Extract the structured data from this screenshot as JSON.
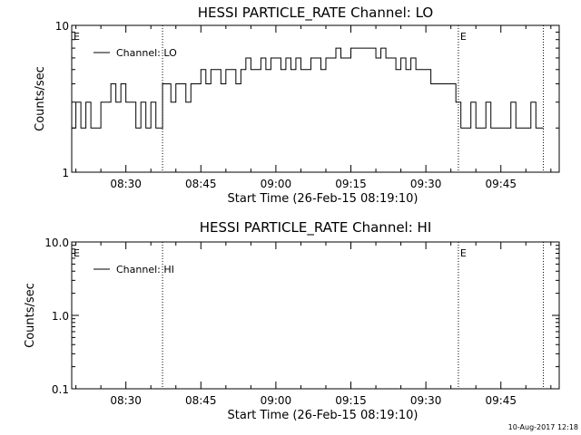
{
  "footer": {
    "timestamp": "10-Aug-2017 12:18"
  },
  "chart_data": [
    {
      "type": "line",
      "title": "HESSI PARTICLE_RATE Channel: LO",
      "xlabel": "Start Time (26-Feb-15 08:19:10)",
      "ylabel": "Counts/sec",
      "yscale": "log",
      "ylim": [
        1,
        10
      ],
      "xlim": [
        "08:19:10",
        "09:56:40"
      ],
      "y_tick_labels": [
        "1",
        "10"
      ],
      "x_tick_labels": [
        "08:30",
        "08:45",
        "09:00",
        "09:15",
        "09:30",
        "09:45"
      ],
      "event_lines": [
        "08:37:20",
        "09:36:30",
        "09:53:30"
      ],
      "event_flags": [
        {
          "time": "08:19:10",
          "label": "E"
        },
        {
          "time": "09:36:30",
          "label": "E"
        }
      ],
      "grid": false,
      "legend_position": "top-left",
      "series": [
        {
          "name": "Channel: LO",
          "step": true,
          "x": [
            "08:19:10",
            "08:20:00",
            "08:21:00",
            "08:22:00",
            "08:23:00",
            "08:24:00",
            "08:25:00",
            "08:26:00",
            "08:27:00",
            "08:28:00",
            "08:29:00",
            "08:30:00",
            "08:31:00",
            "08:32:00",
            "08:33:00",
            "08:34:00",
            "08:35:00",
            "08:36:00",
            "08:37:20",
            "08:38:00",
            "08:39:00",
            "08:40:00",
            "08:41:00",
            "08:42:00",
            "08:43:00",
            "08:44:00",
            "08:45:00",
            "08:46:00",
            "08:47:00",
            "08:48:00",
            "08:49:00",
            "08:50:00",
            "08:51:00",
            "08:52:00",
            "08:53:00",
            "08:54:00",
            "08:55:00",
            "08:56:00",
            "08:57:00",
            "08:58:00",
            "08:59:00",
            "09:00:00",
            "09:01:00",
            "09:02:00",
            "09:03:00",
            "09:04:00",
            "09:05:00",
            "09:06:00",
            "09:07:00",
            "09:08:00",
            "09:09:00",
            "09:10:00",
            "09:11:00",
            "09:12:00",
            "09:13:00",
            "09:14:00",
            "09:15:00",
            "09:16:00",
            "09:17:00",
            "09:18:00",
            "09:19:00",
            "09:20:00",
            "09:21:00",
            "09:22:00",
            "09:23:00",
            "09:24:00",
            "09:25:00",
            "09:26:00",
            "09:27:00",
            "09:28:00",
            "09:29:00",
            "09:30:00",
            "09:31:00",
            "09:32:00",
            "09:33:00",
            "09:34:00",
            "09:35:00",
            "09:36:00",
            "09:37:00",
            "09:38:00",
            "09:39:00",
            "09:40:00",
            "09:41:00",
            "09:42:00",
            "09:43:00",
            "09:44:00",
            "09:45:00",
            "09:46:00",
            "09:47:00",
            "09:48:00",
            "09:49:00",
            "09:50:00",
            "09:51:00",
            "09:52:00"
          ],
          "y": [
            2,
            3,
            2,
            3,
            2,
            2,
            3,
            3,
            4,
            3,
            4,
            3,
            3,
            2,
            3,
            2,
            3,
            2,
            4,
            4,
            3,
            4,
            4,
            3,
            4,
            4,
            5,
            4,
            5,
            5,
            4,
            5,
            5,
            4,
            5,
            6,
            5,
            5,
            6,
            5,
            6,
            6,
            5,
            6,
            5,
            6,
            5,
            5,
            6,
            6,
            5,
            6,
            6,
            7,
            6,
            6,
            7,
            7,
            7,
            7,
            7,
            6,
            7,
            6,
            6,
            5,
            6,
            5,
            6,
            5,
            5,
            5,
            4,
            4,
            4,
            4,
            4,
            3,
            2,
            2,
            3,
            2,
            2,
            3,
            2,
            2,
            2,
            2,
            3,
            2,
            2,
            2,
            3,
            2
          ]
        }
      ]
    },
    {
      "type": "line",
      "title": "HESSI PARTICLE_RATE Channel: HI",
      "xlabel": "Start Time (26-Feb-15 08:19:10)",
      "ylabel": "Counts/sec",
      "yscale": "log",
      "ylim": [
        0.1,
        10
      ],
      "xlim": [
        "08:19:10",
        "09:56:40"
      ],
      "y_tick_labels": [
        "0.1",
        "1.0",
        "10.0"
      ],
      "x_tick_labels": [
        "08:30",
        "08:45",
        "09:00",
        "09:15",
        "09:30",
        "09:45"
      ],
      "event_lines": [
        "08:37:20",
        "09:36:30",
        "09:53:30"
      ],
      "event_flags": [
        {
          "time": "08:19:10",
          "label": "E"
        },
        {
          "time": "09:36:30",
          "label": "E"
        }
      ],
      "grid": false,
      "legend_position": "top-left",
      "series": [
        {
          "name": "Channel: HI",
          "step": true,
          "x": [],
          "y": []
        }
      ]
    }
  ]
}
